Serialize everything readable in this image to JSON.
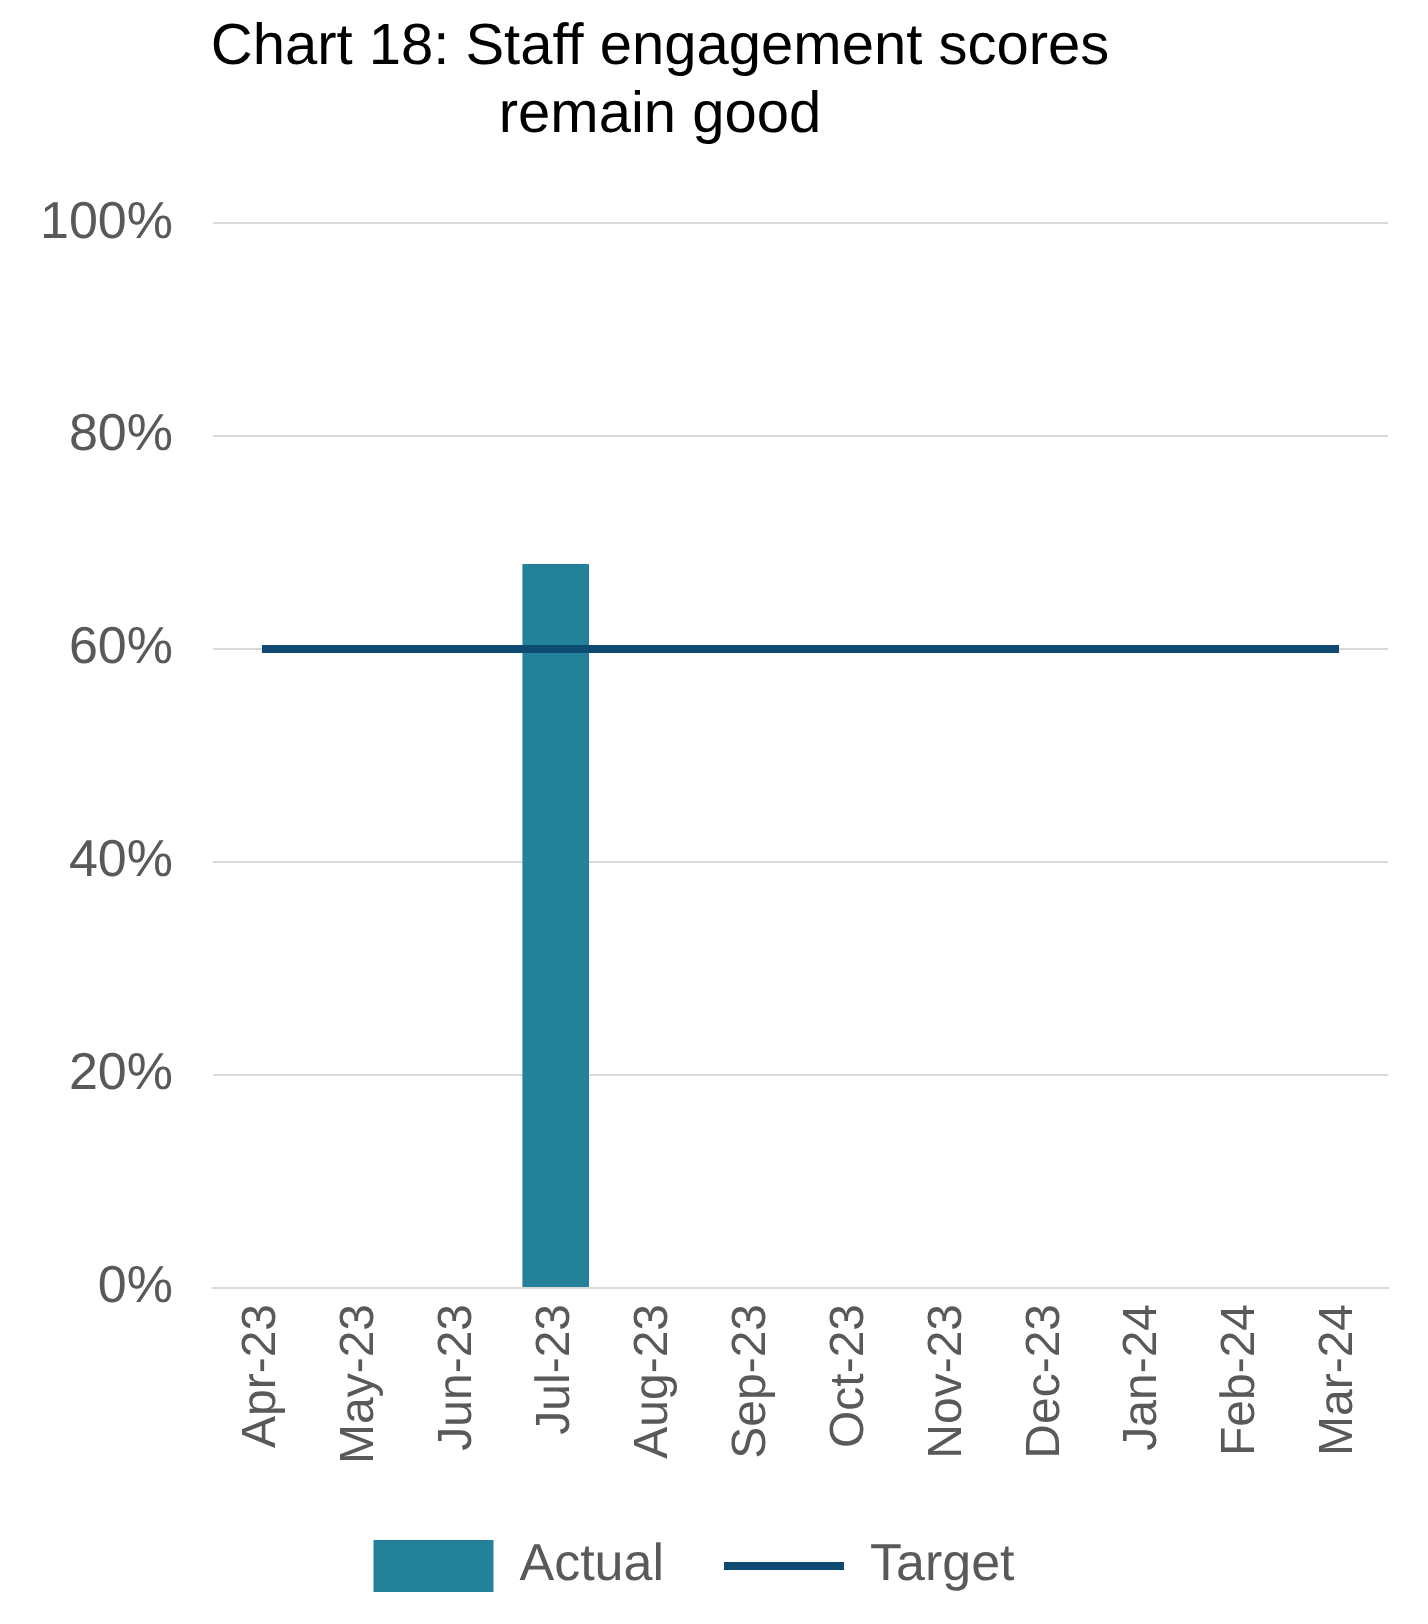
{
  "chart_data": {
    "type": "bar",
    "title": "Chart 18: Staff engagement scores remain good",
    "categories": [
      "Apr-23",
      "May-23",
      "Jun-23",
      "Jul-23",
      "Aug-23",
      "Sep-23",
      "Oct-23",
      "Nov-23",
      "Dec-23",
      "Jan-24",
      "Feb-24",
      "Mar-24"
    ],
    "series": [
      {
        "name": "Actual",
        "color": "#23829a",
        "values": [
          null,
          null,
          null,
          68,
          null,
          null,
          null,
          null,
          null,
          null,
          null,
          null
        ]
      },
      {
        "name": "Target",
        "type": "line",
        "color": "#0e4a72",
        "values": [
          60,
          60,
          60,
          60,
          60,
          60,
          60,
          60,
          60,
          60,
          60,
          60
        ]
      }
    ],
    "ylim": [
      0,
      100
    ],
    "yticks": [
      {
        "value": 0,
        "label": "0%"
      },
      {
        "value": 20,
        "label": "20%"
      },
      {
        "value": 40,
        "label": "40%"
      },
      {
        "value": 60,
        "label": "60%"
      },
      {
        "value": 80,
        "label": "80%"
      },
      {
        "value": 100,
        "label": "100%"
      }
    ],
    "grid": "y",
    "legend": "bottom",
    "marker": "none"
  }
}
